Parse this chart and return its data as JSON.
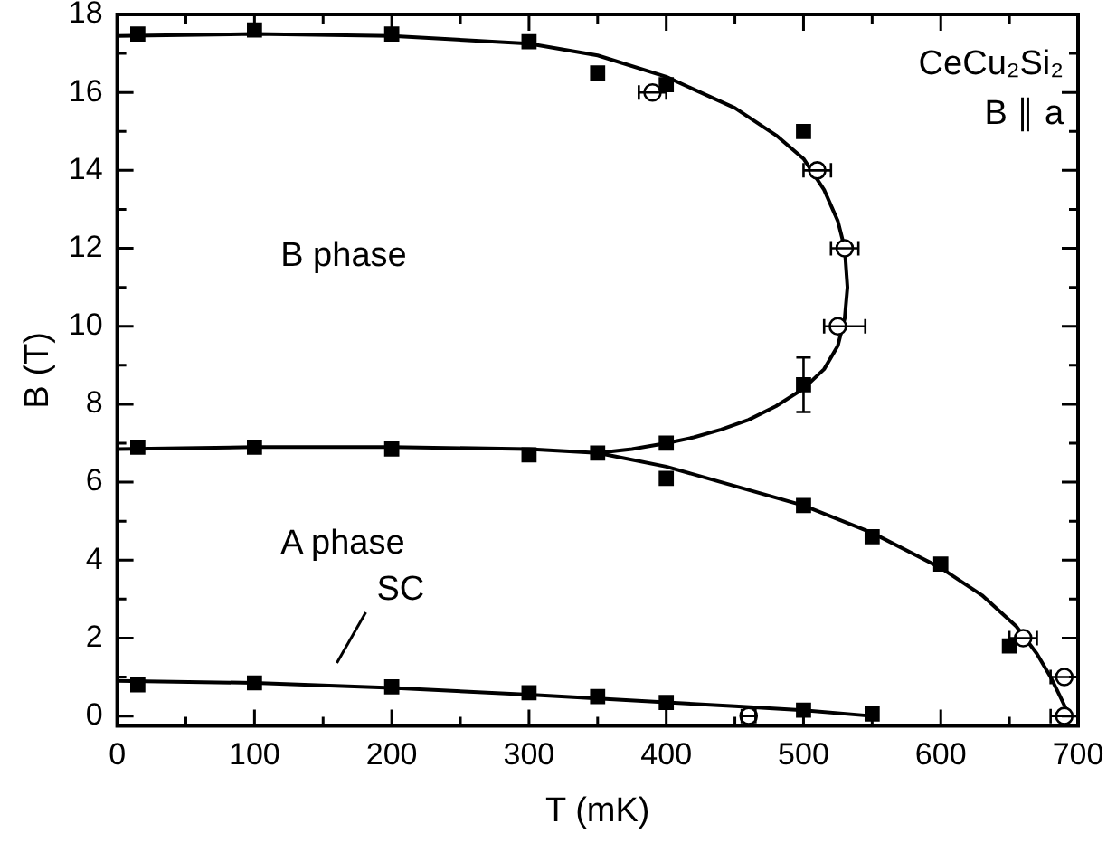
{
  "chart_data": {
    "type": "scatter",
    "xlabel": "T (mK)",
    "ylabel": "B (T)",
    "xlim": [
      0,
      700
    ],
    "ylim": [
      -0.25,
      18
    ],
    "xticks": [
      0,
      {
        "value": 50,
        "label": null
      },
      100,
      {
        "value": 150,
        "label": null
      },
      200,
      {
        "value": 250,
        "label": null
      },
      300,
      {
        "value": 350,
        "label": null
      },
      400,
      {
        "value": 450,
        "label": null
      },
      500,
      {
        "value": 550,
        "label": null
      },
      600,
      {
        "value": 650,
        "label": null
      },
      700
    ],
    "yticks": [
      0,
      {
        "value": 1,
        "label": null
      },
      2,
      {
        "value": 3,
        "label": null
      },
      4,
      {
        "value": 5,
        "label": null
      },
      6,
      {
        "value": 7,
        "label": null
      },
      8,
      {
        "value": 9,
        "label": null
      },
      10,
      {
        "value": 11,
        "label": null
      },
      12,
      {
        "value": 13,
        "label": null
      },
      14,
      {
        "value": 15,
        "label": null
      },
      16,
      {
        "value": 17,
        "label": null
      },
      18
    ],
    "grid": false,
    "legend": false,
    "annotations": [
      "B phase",
      "A phase",
      "SC",
      "CeCu₂Si₂",
      "B ∥ a"
    ],
    "series": [
      {
        "type": "line",
        "color": "#000000",
        "marker": "none",
        "x": [
          0,
          100,
          200,
          300,
          350,
          400,
          450,
          480,
          500,
          515,
          525,
          530,
          532,
          530,
          525,
          515,
          500,
          480,
          460,
          440,
          420,
          400,
          375,
          350
        ],
        "values": [
          17.45,
          17.5,
          17.45,
          17.25,
          16.95,
          16.4,
          15.6,
          14.9,
          14.3,
          13.5,
          12.7,
          12,
          11,
          10.2,
          9.5,
          8.9,
          8.4,
          7.95,
          7.6,
          7.35,
          7.15,
          7.0,
          6.85,
          6.75
        ]
      },
      {
        "type": "line",
        "color": "#000000",
        "marker": "none",
        "x": [
          0,
          100,
          200,
          300,
          350,
          400,
          450,
          500,
          550,
          600,
          630,
          655,
          670,
          680,
          687,
          691,
          693
        ],
        "values": [
          6.85,
          6.9,
          6.9,
          6.85,
          6.75,
          6.4,
          5.9,
          5.4,
          4.7,
          3.8,
          3.1,
          2.3,
          1.6,
          1.0,
          0.5,
          0.2,
          0
        ]
      },
      {
        "type": "line",
        "color": "#000000",
        "marker": "none",
        "x": [
          0,
          100,
          200,
          300,
          350,
          400,
          450,
          500,
          550
        ],
        "values": [
          0.9,
          0.85,
          0.72,
          0.55,
          0.45,
          0.35,
          0.25,
          0.15,
          0
        ]
      },
      {
        "type": "scatter",
        "color": "#000000",
        "marker": "square",
        "x": [
          15,
          100,
          200,
          300,
          350,
          400,
          500,
          500,
          15,
          100,
          200,
          300,
          350,
          400,
          400,
          500,
          550,
          600,
          650,
          15,
          100,
          200,
          300,
          350,
          400,
          500,
          550
        ],
        "values": [
          17.5,
          17.6,
          17.5,
          17.3,
          16.5,
          16.2,
          15.0,
          8.5,
          6.9,
          6.9,
          6.85,
          6.7,
          6.75,
          7.0,
          6.1,
          5.4,
          4.6,
          3.9,
          1.8,
          0.8,
          0.85,
          0.75,
          0.6,
          0.5,
          0.35,
          0.15,
          0.05
        ],
        "errors": [
          null,
          null,
          null,
          null,
          null,
          null,
          null,
          0.7,
          null,
          null,
          null,
          null,
          null,
          null,
          null,
          null,
          null,
          null,
          null,
          null,
          null,
          null,
          null,
          null,
          null,
          null,
          null
        ]
      },
      {
        "type": "scatter",
        "color": "#000000",
        "marker": "circle",
        "x": [
          390,
          510,
          530,
          525,
          660,
          690,
          690,
          460
        ],
        "values": [
          16.0,
          14.0,
          12.0,
          10.0,
          2.0,
          1.0,
          0.0,
          0.0
        ],
        "xerrors": [
          10,
          10,
          10,
          [
            515,
            545
          ],
          10,
          10,
          10,
          5
        ]
      }
    ]
  }
}
